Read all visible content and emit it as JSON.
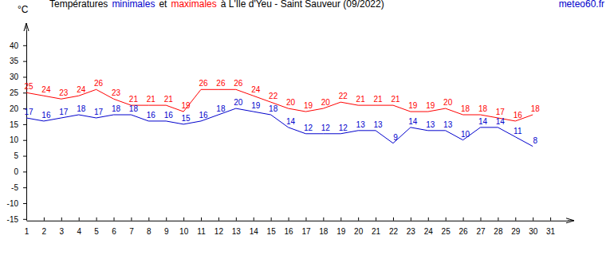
{
  "chart_data": {
    "type": "line",
    "title": [
      "Températures",
      "et",
      "à L'Ile d'Yeu - Saint Sauveur (09/2022)"
    ],
    "source": "meteo60.fr",
    "ylabel": "°C",
    "x": [
      1,
      2,
      3,
      4,
      5,
      6,
      7,
      8,
      9,
      10,
      11,
      12,
      13,
      14,
      15,
      16,
      17,
      18,
      19,
      20,
      21,
      22,
      23,
      24,
      25,
      26,
      27,
      28,
      29,
      30
    ],
    "series": [
      {
        "name": "minimales",
        "color": "#0000cc",
        "values": [
          17,
          16,
          17,
          18,
          17,
          18,
          18,
          16,
          16,
          15,
          16,
          18,
          20,
          19,
          18,
          14,
          12,
          12,
          12,
          13,
          13,
          9,
          14,
          13,
          13,
          10,
          14,
          14,
          11,
          8
        ]
      },
      {
        "name": "maximales",
        "color": "#ff0000",
        "values": [
          25,
          24,
          23,
          24,
          26,
          23,
          21,
          21,
          21,
          19,
          26,
          26,
          26,
          24,
          22,
          20,
          19,
          20,
          22,
          21,
          21,
          21,
          19,
          19,
          20,
          18,
          18,
          17,
          16,
          18
        ]
      }
    ],
    "xlim": [
      1,
      32
    ],
    "xticks": [
      1,
      2,
      3,
      4,
      5,
      6,
      7,
      8,
      9,
      10,
      11,
      12,
      13,
      14,
      15,
      16,
      17,
      18,
      19,
      20,
      21,
      22,
      23,
      24,
      25,
      26,
      27,
      28,
      29,
      30,
      31
    ],
    "ylim": [
      -15,
      45
    ],
    "yticks": [
      -15,
      -10,
      -5,
      0,
      5,
      10,
      15,
      20,
      25,
      30,
      35,
      40
    ],
    "grid": false,
    "data_labels": true
  }
}
